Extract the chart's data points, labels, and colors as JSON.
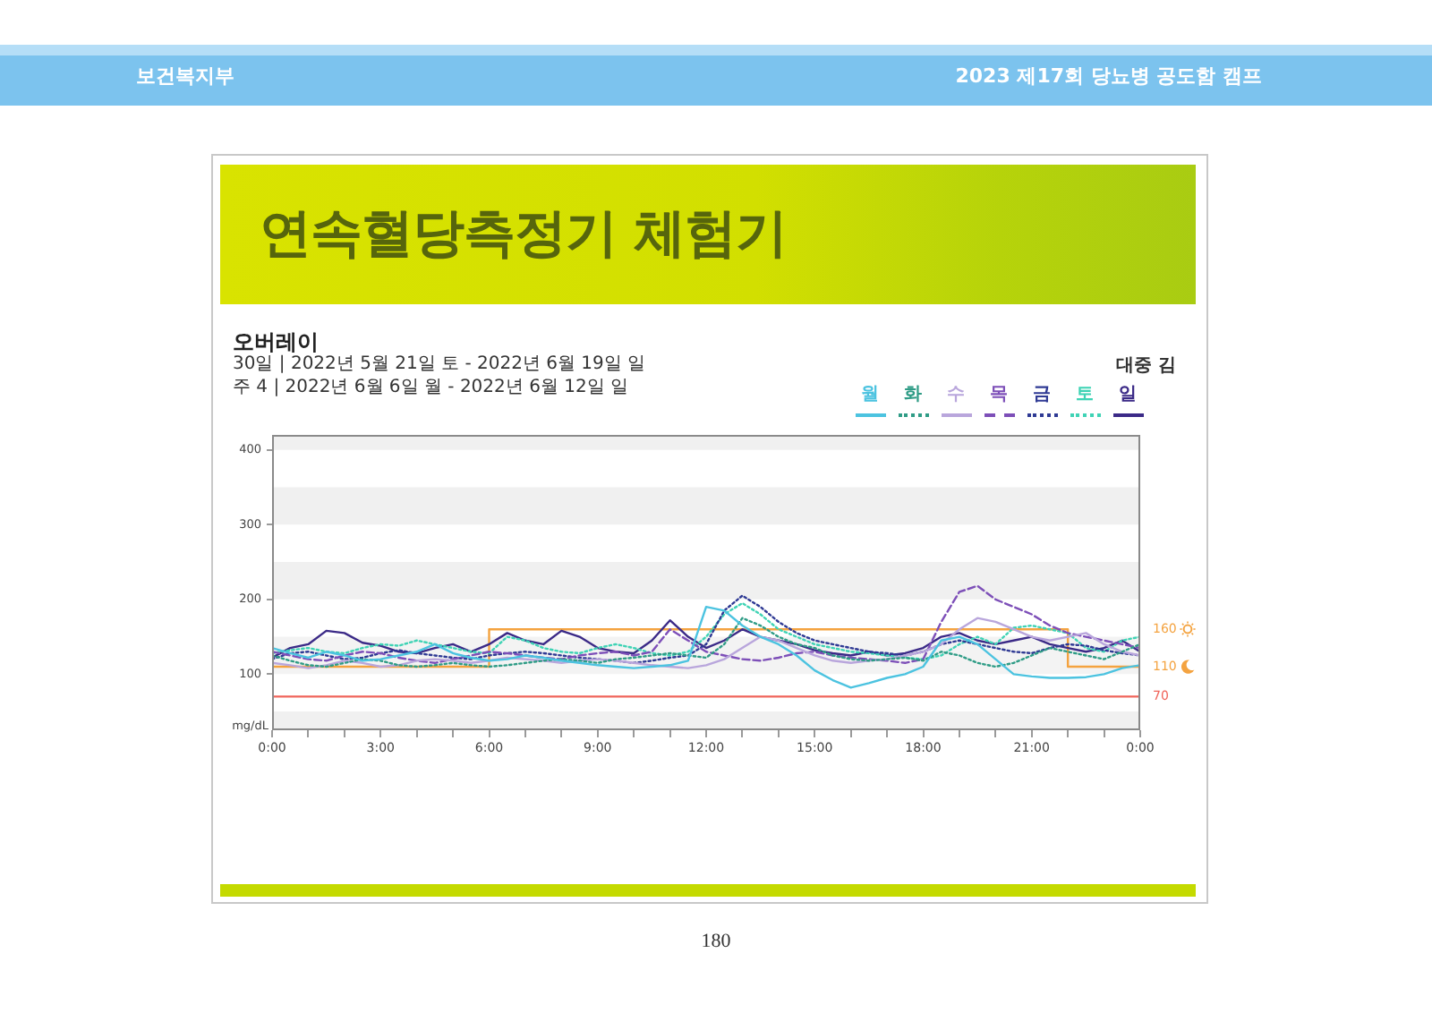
{
  "chart_data": {
    "type": "line",
    "title": "오버레이",
    "subtitle": "30일 | 2022년 5월 21일 토 - 2022년 6월 19일 일",
    "ylabel": "mg/dL",
    "annotations": [
      "주 4 | 2022년 6월 6일 월 - 2022년 6월 12일 일",
      "대중 김",
      "연속혈당측정기 체험기",
      "보건복지부",
      "2023 제17회 당뇨병 공도함 캠프",
      "180",
      {
        "text": "160",
        "x": 24,
        "y": 160
      },
      {
        "text": "110",
        "x": 24,
        "y": 110
      }
    ],
    "x": [
      0,
      0.5,
      1,
      1.5,
      2,
      2.5,
      3,
      3.5,
      4,
      4.5,
      5,
      5.5,
      6,
      6.5,
      7,
      7.5,
      8,
      8.5,
      9,
      9.5,
      10,
      10.5,
      11,
      11.5,
      12,
      12.5,
      13,
      13.5,
      14,
      14.5,
      15,
      15.5,
      16,
      16.5,
      17,
      17.5,
      18,
      18.5,
      19,
      19.5,
      20,
      20.5,
      21,
      21.5,
      22,
      22.5,
      23,
      23.5,
      24
    ],
    "xlim": [
      0,
      24
    ],
    "xticks": [
      {
        "value": 0,
        "label": "0:00"
      },
      {
        "value": 1,
        "label": null
      },
      {
        "value": 2,
        "label": null
      },
      {
        "value": 3,
        "label": "3:00"
      },
      {
        "value": 4,
        "label": null
      },
      {
        "value": 5,
        "label": null
      },
      {
        "value": 6,
        "label": "6:00"
      },
      {
        "value": 7,
        "label": null
      },
      {
        "value": 8,
        "label": null
      },
      {
        "value": 9,
        "label": "9:00"
      },
      {
        "value": 10,
        "label": null
      },
      {
        "value": 11,
        "label": null
      },
      {
        "value": 12,
        "label": "12:00"
      },
      {
        "value": 13,
        "label": null
      },
      {
        "value": 14,
        "label": null
      },
      {
        "value": 15,
        "label": "15:00"
      },
      {
        "value": 16,
        "label": null
      },
      {
        "value": 17,
        "label": null
      },
      {
        "value": 18,
        "label": "18:00"
      },
      {
        "value": 19,
        "label": null
      },
      {
        "value": 20,
        "label": null
      },
      {
        "value": 21,
        "label": "21:00"
      },
      {
        "value": 22,
        "label": null
      },
      {
        "value": 23,
        "label": null
      },
      {
        "value": 24,
        "label": "0:00"
      }
    ],
    "ylim": [
      25,
      420
    ],
    "yticks": [
      100,
      200,
      300,
      400
    ],
    "grid": false,
    "legend": "top right",
    "marker": "none",
    "bands": [
      {
        "axis": "y",
        "from": 25,
        "to": 50,
        "color": "#f0f0f0"
      },
      {
        "axis": "y",
        "from": 100,
        "to": 150,
        "color": "#f3f3f3"
      },
      {
        "axis": "y",
        "from": 200,
        "to": 250,
        "color": "#f0f0f0"
      },
      {
        "axis": "y",
        "from": 300,
        "to": 350,
        "color": "#f0f0f0"
      },
      {
        "axis": "y",
        "from": 400,
        "to": 420,
        "color": "#f0f0f0"
      }
    ],
    "ref_lines": [
      {
        "axis": "y",
        "value": 70,
        "label": "70",
        "color": "#f0645a"
      }
    ],
    "series": [
      {
        "type": "step",
        "color": "#f4a340",
        "x": [
          0,
          6,
          22,
          24
        ],
        "values": [
          110,
          160,
          110,
          110
        ]
      },
      {
        "name": "월",
        "color": "#4cc3e0",
        "line_style": "solid",
        "values": [
          135,
          128,
          122,
          130,
          125,
          118,
          120,
          125,
          130,
          140,
          128,
          122,
          118,
          120,
          125,
          122,
          118,
          115,
          112,
          110,
          108,
          110,
          112,
          118,
          190,
          185,
          165,
          150,
          140,
          125,
          105,
          92,
          82,
          88,
          95,
          100,
          110,
          145,
          150,
          140,
          120,
          100,
          97,
          95,
          95,
          96,
          100,
          108,
          112
        ]
      },
      {
        "name": "화",
        "color": "#2f9c86",
        "line_style": "dotted",
        "values": [
          125,
          118,
          112,
          110,
          115,
          120,
          118,
          112,
          110,
          112,
          115,
          112,
          110,
          112,
          115,
          118,
          120,
          118,
          115,
          120,
          122,
          125,
          128,
          125,
          122,
          140,
          175,
          165,
          150,
          140,
          135,
          125,
          120,
          118,
          120,
          122,
          118,
          130,
          125,
          115,
          110,
          115,
          125,
          135,
          130,
          125,
          120,
          130,
          140
        ]
      },
      {
        "name": "수",
        "color": "#b9a6dc",
        "line_style": "solid",
        "values": [
          115,
          112,
          108,
          112,
          118,
          115,
          110,
          112,
          118,
          120,
          118,
          115,
          118,
          122,
          120,
          118,
          115,
          118,
          120,
          118,
          115,
          112,
          110,
          108,
          112,
          120,
          135,
          150,
          145,
          135,
          125,
          118,
          115,
          118,
          120,
          125,
          130,
          140,
          160,
          175,
          170,
          160,
          150,
          145,
          150,
          155,
          140,
          130,
          125
        ]
      },
      {
        "name": "목",
        "color": "#7d4fb8",
        "line_style": "dashed",
        "values": [
          130,
          125,
          120,
          118,
          125,
          130,
          128,
          122,
          118,
          115,
          120,
          125,
          130,
          128,
          125,
          122,
          120,
          125,
          128,
          130,
          125,
          130,
          160,
          145,
          130,
          125,
          120,
          118,
          122,
          128,
          130,
          125,
          122,
          120,
          118,
          115,
          120,
          170,
          210,
          218,
          200,
          190,
          180,
          165,
          155,
          150,
          145,
          140,
          135
        ]
      },
      {
        "name": "금",
        "color": "#2f3a94",
        "line_style": "dotted",
        "values": [
          120,
          128,
          130,
          125,
          120,
          122,
          128,
          132,
          128,
          125,
          122,
          120,
          125,
          128,
          130,
          128,
          125,
          122,
          120,
          118,
          115,
          118,
          122,
          125,
          140,
          185,
          205,
          190,
          170,
          155,
          145,
          140,
          135,
          130,
          128,
          125,
          130,
          140,
          145,
          140,
          135,
          130,
          128,
          135,
          140,
          138,
          132,
          128,
          125
        ]
      },
      {
        "name": "토",
        "color": "#3fd3b5",
        "line_style": "dotted",
        "values": [
          128,
          132,
          135,
          130,
          128,
          135,
          140,
          138,
          145,
          140,
          135,
          130,
          128,
          150,
          145,
          135,
          130,
          128,
          135,
          140,
          135,
          128,
          125,
          130,
          150,
          180,
          195,
          180,
          160,
          150,
          140,
          135,
          130,
          128,
          125,
          122,
          120,
          125,
          140,
          150,
          140,
          162,
          165,
          160,
          155,
          135,
          130,
          145,
          150
        ]
      },
      {
        "name": "일",
        "color": "#3b2a87",
        "line_style": "solid",
        "values": [
          122,
          135,
          140,
          158,
          155,
          142,
          138,
          130,
          128,
          135,
          140,
          130,
          140,
          155,
          145,
          140,
          158,
          150,
          135,
          130,
          128,
          145,
          172,
          150,
          135,
          145,
          160,
          150,
          145,
          140,
          132,
          128,
          125,
          130,
          125,
          128,
          135,
          150,
          155,
          145,
          140,
          145,
          150,
          140,
          135,
          130,
          135,
          145,
          130
        ]
      }
    ]
  }
}
